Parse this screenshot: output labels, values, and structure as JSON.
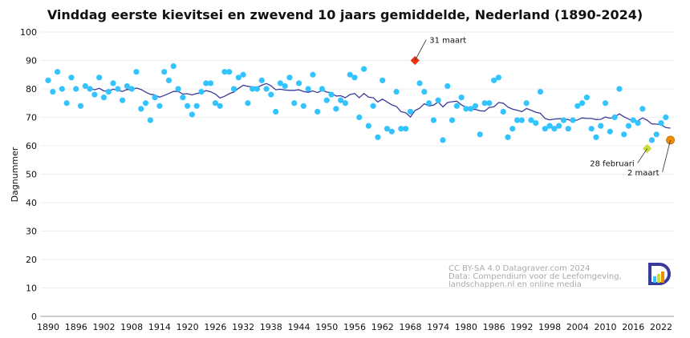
{
  "chart_data": {
    "type": "scatter",
    "title": "Vinddag eerste kievitsei en zwevend 10 jaars gemiddelde, Nederland (1890-2024)",
    "xlabel": "",
    "ylabel": "Dagnummer",
    "xlim": [
      1890,
      2024
    ],
    "ylim": [
      0,
      100
    ],
    "x_ticks": [
      "1890",
      "1896",
      "1902",
      "1908",
      "1914",
      "1920",
      "1926",
      "1932",
      "1938",
      "1944",
      "1950",
      "1956",
      "1962",
      "1968",
      "1974",
      "1980",
      "1986",
      "1992",
      "1998",
      "2004",
      "2010",
      "2016",
      "2022"
    ],
    "y_ticks": [
      "0",
      "10",
      "20",
      "30",
      "40",
      "50",
      "60",
      "70",
      "80",
      "90",
      "100"
    ],
    "grid": "horizontal",
    "start_year": 1890,
    "values": [
      83,
      79,
      86,
      80,
      75,
      84,
      80,
      74,
      81,
      80,
      78,
      84,
      77,
      79,
      82,
      80,
      76,
      81,
      80,
      86,
      73,
      75,
      69,
      77,
      74,
      86,
      83,
      88,
      80,
      77,
      74,
      71,
      74,
      79,
      82,
      82,
      75,
      74,
      86,
      86,
      80,
      84,
      85,
      75,
      80,
      80,
      83,
      80,
      78,
      72,
      82,
      81,
      84,
      75,
      82,
      74,
      80,
      85,
      72,
      80,
      76,
      78,
      73,
      76,
      75,
      85,
      84,
      70,
      87,
      67,
      74,
      63,
      83,
      66,
      65,
      79,
      66,
      66,
      72,
      90,
      82,
      79,
      75,
      69,
      76,
      62,
      81,
      69,
      74,
      77,
      73,
      73,
      74,
      64,
      75,
      75,
      83,
      84,
      72,
      63,
      66,
      69,
      69,
      75,
      69,
      68,
      79,
      66,
      67,
      66,
      67,
      69,
      66,
      69,
      74,
      75,
      77,
      66,
      63,
      67,
      75,
      65,
      70,
      80,
      64,
      67,
      69,
      68,
      73,
      59,
      62,
      64,
      68,
      70,
      62
    ],
    "moving_average_window": 10,
    "colors": {
      "points": "#33c3ff",
      "average": "#3a3a9a",
      "earliest_old": "#ee3311",
      "earliest_recent": "#c8dc3c",
      "latest": "#f08c00"
    },
    "annotations": [
      {
        "year": 1969,
        "value": 90,
        "label": "31 maart",
        "marker": "diamond",
        "color": "#ee3311"
      },
      {
        "year": 2019,
        "value": 59,
        "label": "28 februari",
        "marker": "diamond",
        "color": "#c8dc3c"
      },
      {
        "year": 2024,
        "value": 62,
        "label": "2 maart",
        "marker": "circle",
        "color": "#f08c00"
      }
    ],
    "credits": [
      "CC BY-SA 4.0 Datagraver.com 2024",
      "Data: Compendium voor de Leefomgeving,",
      "landschappen.nl en online media"
    ]
  }
}
